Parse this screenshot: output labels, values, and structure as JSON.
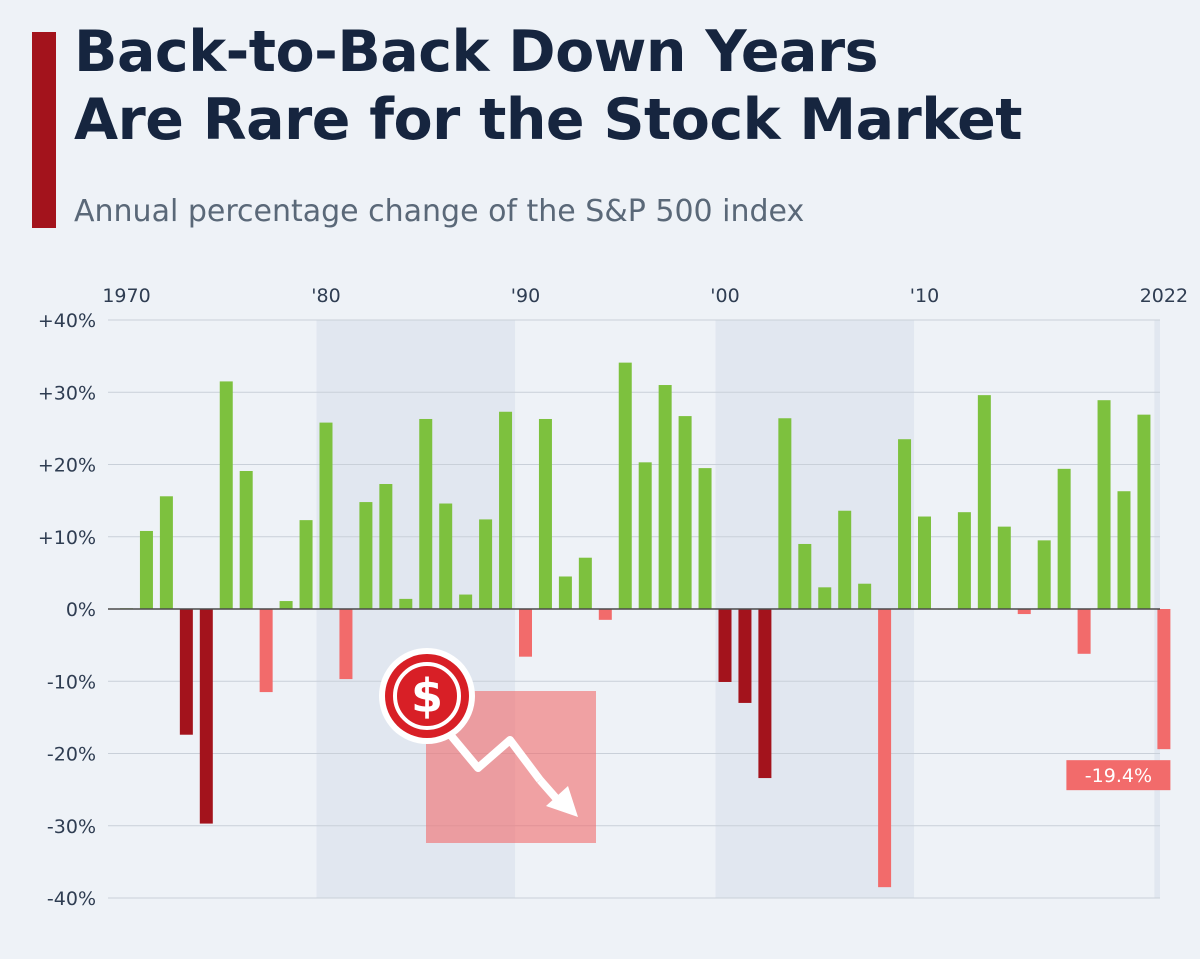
{
  "title_lines": [
    "Back-to-Back Down Years",
    "Are Rare for the Stock Market"
  ],
  "subtitle": "Annual percentage change of the S&P 500 index",
  "chart_data": {
    "type": "bar",
    "x": [
      1970,
      1971,
      1972,
      1973,
      1974,
      1975,
      1976,
      1977,
      1978,
      1979,
      1980,
      1981,
      1982,
      1983,
      1984,
      1985,
      1986,
      1987,
      1988,
      1989,
      1990,
      1991,
      1992,
      1993,
      1994,
      1995,
      1996,
      1997,
      1998,
      1999,
      2000,
      2001,
      2002,
      2003,
      2004,
      2005,
      2006,
      2007,
      2008,
      2009,
      2010,
      2011,
      2012,
      2013,
      2014,
      2015,
      2016,
      2017,
      2018,
      2019,
      2020,
      2021,
      2022
    ],
    "values": [
      0.1,
      10.8,
      15.6,
      -17.4,
      -29.7,
      31.5,
      19.1,
      -11.5,
      1.1,
      12.3,
      25.8,
      -9.7,
      14.8,
      17.3,
      1.4,
      26.3,
      14.6,
      2.0,
      12.4,
      27.3,
      -6.6,
      26.3,
      4.5,
      7.1,
      -1.5,
      34.1,
      20.3,
      31.0,
      26.7,
      19.5,
      -10.1,
      -13.0,
      -23.4,
      26.4,
      9.0,
      3.0,
      13.6,
      3.5,
      -38.5,
      23.5,
      12.8,
      0.0,
      13.4,
      29.6,
      11.4,
      -0.7,
      9.5,
      19.4,
      -6.2,
      28.9,
      16.3,
      26.9,
      -19.4
    ],
    "back_to_back_down_years": [
      1973,
      1974,
      2000,
      2001,
      2002
    ],
    "xtick_labels": [
      {
        "year": 1970,
        "label": "1970"
      },
      {
        "year": 1980,
        "label": "'80"
      },
      {
        "year": 1990,
        "label": "'90"
      },
      {
        "year": 2000,
        "label": "'00"
      },
      {
        "year": 2010,
        "label": "'10"
      },
      {
        "year": 2022,
        "label": "2022"
      }
    ],
    "ytick_labels": [
      "+40%",
      "+30%",
      "+20%",
      "+10%",
      "0%",
      "-10%",
      "-20%",
      "-30%",
      "-40%"
    ],
    "ytick_values": [
      40,
      30,
      20,
      10,
      0,
      -10,
      -20,
      -30,
      -40
    ],
    "ylim": [
      -40,
      40
    ],
    "shaded_decades": [
      [
        1980,
        1989
      ],
      [
        2000,
        2009
      ],
      [
        2022,
        2022
      ]
    ],
    "annotation": {
      "year": 2022,
      "label": "-19.4%"
    },
    "icon": "dollar-sign-down-trend-icon",
    "colors": {
      "positive": "#7dc13e",
      "negative": "#f26b6b",
      "consecutive_negative": "#a3131c",
      "band": "#e1e7f0",
      "grid": "#c9d0d9",
      "zero_line": "#4a4a4a",
      "label_text": "#2f3d52",
      "annotation_bg": "#f26b6b"
    }
  }
}
